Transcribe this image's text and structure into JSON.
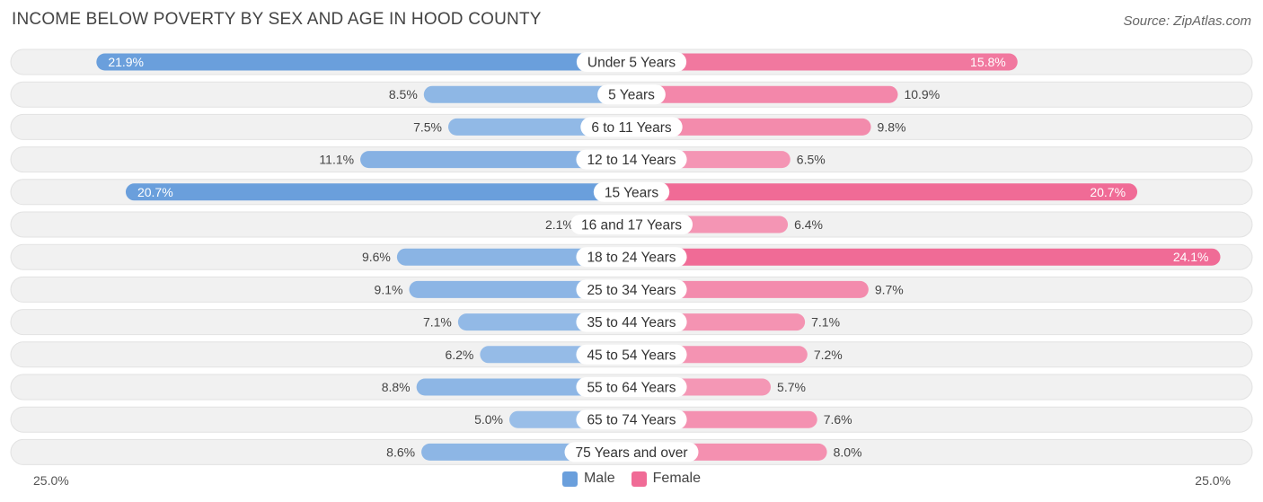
{
  "title": "INCOME BELOW POVERTY BY SEX AND AGE IN HOOD COUNTY",
  "source": "Source: ZipAtlas.com",
  "colors": {
    "male": "#6a9fdc",
    "male_light": "#a8c8ec",
    "female": "#f06b96",
    "female_light": "#f6a9c2",
    "row_bg": "#f1f1f1"
  },
  "legend": {
    "male": "Male",
    "female": "Female"
  },
  "axis": {
    "left": "25.0%",
    "right": "25.0%"
  },
  "chart_data": {
    "type": "bar",
    "orientation": "horizontal-diverging",
    "title": "INCOME BELOW POVERTY BY SEX AND AGE IN HOOD COUNTY",
    "categories": [
      "Under 5 Years",
      "5 Years",
      "6 to 11 Years",
      "12 to 14 Years",
      "15 Years",
      "16 and 17 Years",
      "18 to 24 Years",
      "25 to 34 Years",
      "35 to 44 Years",
      "45 to 54 Years",
      "55 to 64 Years",
      "65 to 74 Years",
      "75 Years and over"
    ],
    "series": [
      {
        "name": "Male",
        "values": [
          21.9,
          8.5,
          7.5,
          11.1,
          20.7,
          2.1,
          9.6,
          9.1,
          7.1,
          6.2,
          8.8,
          5.0,
          8.6
        ],
        "labels": [
          "21.9%",
          "8.5%",
          "7.5%",
          "11.1%",
          "20.7%",
          "2.1%",
          "9.6%",
          "9.1%",
          "7.1%",
          "6.2%",
          "8.8%",
          "5.0%",
          "8.6%"
        ]
      },
      {
        "name": "Female",
        "values": [
          15.8,
          10.9,
          9.8,
          6.5,
          20.7,
          6.4,
          24.1,
          9.7,
          7.1,
          7.2,
          5.7,
          7.6,
          8.0
        ],
        "labels": [
          "15.8%",
          "10.9%",
          "9.8%",
          "6.5%",
          "20.7%",
          "6.4%",
          "24.1%",
          "9.7%",
          "7.1%",
          "7.2%",
          "5.7%",
          "7.6%",
          "8.0%"
        ]
      }
    ],
    "xlim": [
      -25,
      25
    ],
    "legend": "bottom-center"
  }
}
